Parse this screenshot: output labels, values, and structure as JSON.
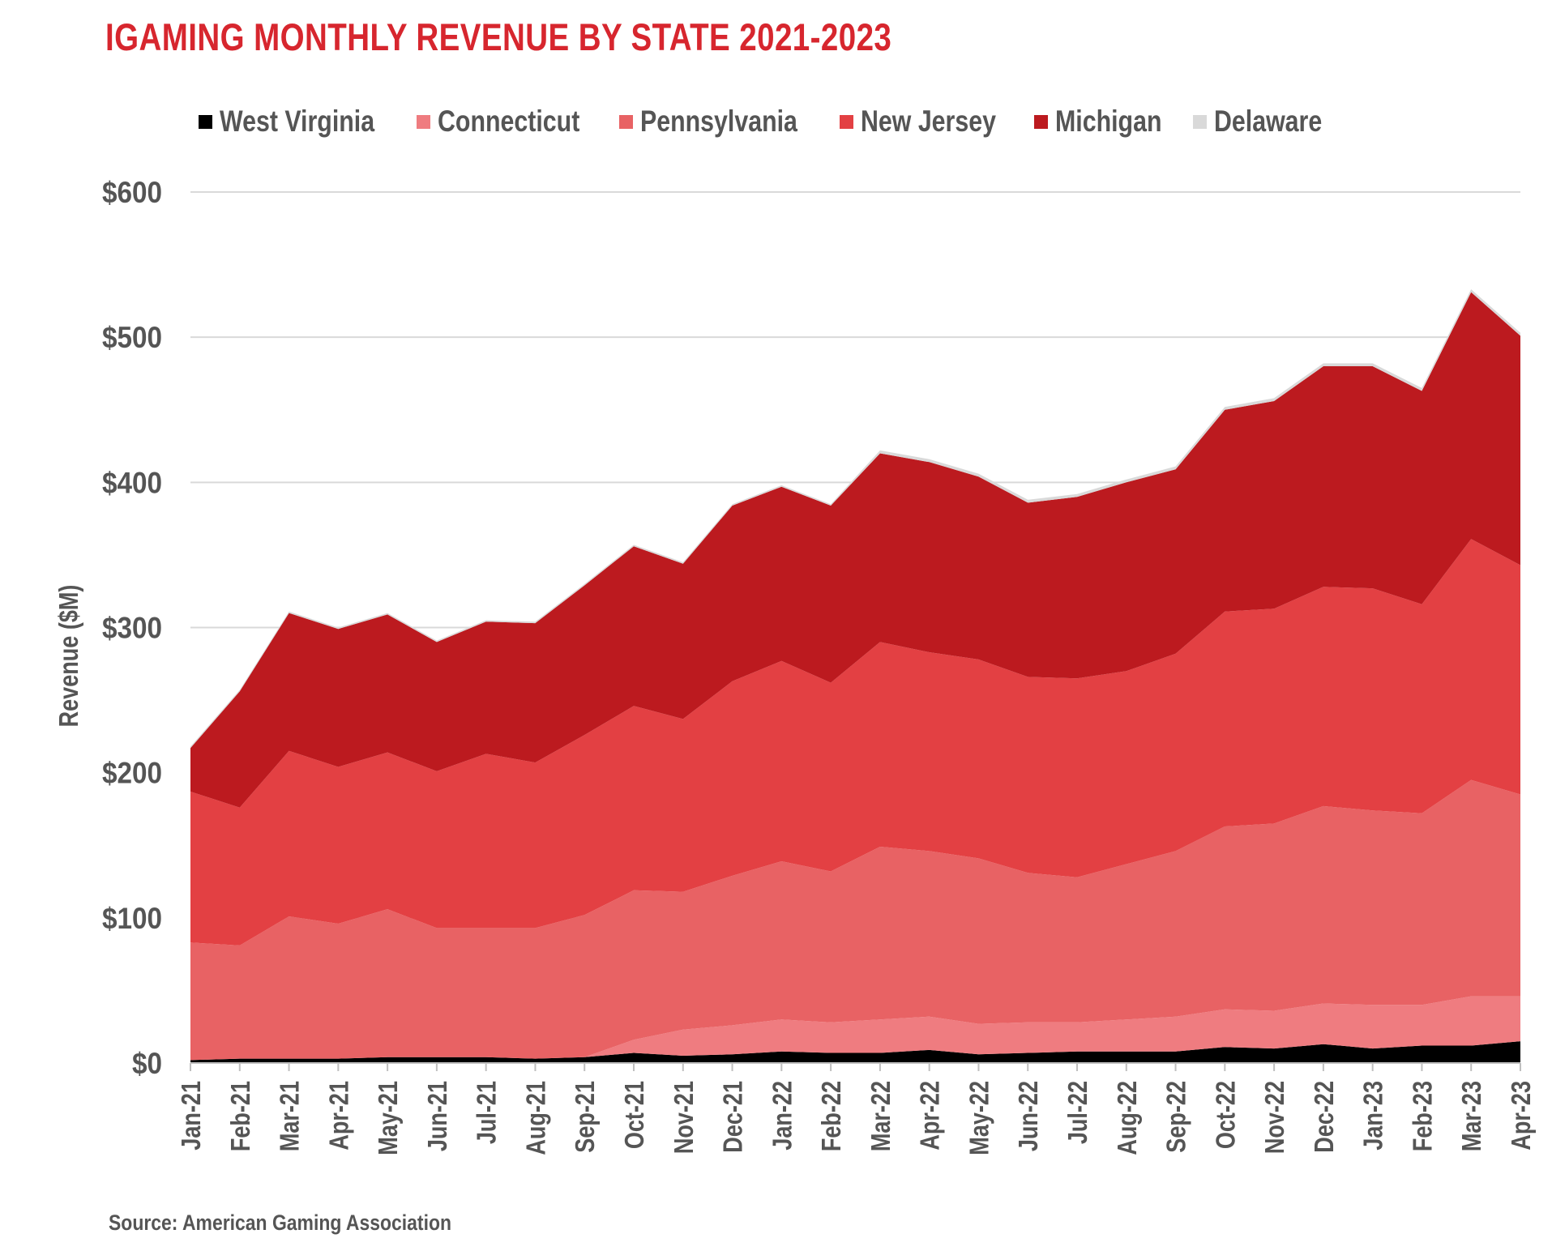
{
  "title": "IGAMING MONTHLY REVENUE BY STATE 2021-2023",
  "source": "Source: American Gaming Association",
  "legend": [
    {
      "name": "West Virginia",
      "color": "#000000"
    },
    {
      "name": "Connecticut",
      "color": "#ef7c80"
    },
    {
      "name": "Pennsylvania",
      "color": "#e86264"
    },
    {
      "name": "New Jersey",
      "color": "#e34043"
    },
    {
      "name": "Michigan",
      "color": "#bc1a1f"
    },
    {
      "name": "Delaware",
      "color": "#d9d9d9"
    }
  ],
  "chart_data": {
    "type": "area",
    "stacked": true,
    "title": "IGAMING MONTHLY REVENUE BY STATE 2021-2023",
    "xlabel": "",
    "ylabel": "Revenue ($M)",
    "ylim": [
      0,
      600
    ],
    "yticks": [
      0,
      100,
      200,
      300,
      400,
      500,
      600
    ],
    "ytick_labels": [
      "$0",
      "$100",
      "$200",
      "$300",
      "$400",
      "$500",
      "$600"
    ],
    "grid": true,
    "legend_position": "top",
    "categories": [
      "Jan-21",
      "Feb-21",
      "Mar-21",
      "Apr-21",
      "May-21",
      "Jun-21",
      "Jul-21",
      "Aug-21",
      "Sep-21",
      "Oct-21",
      "Nov-21",
      "Dec-21",
      "Jan-22",
      "Feb-22",
      "Mar-22",
      "Apr-22",
      "May-22",
      "Jun-22",
      "Jul-22",
      "Aug-22",
      "Sep-22",
      "Oct-22",
      "Nov-22",
      "Dec-22",
      "Jan-23",
      "Feb-23",
      "Mar-23",
      "Apr-23"
    ],
    "series": [
      {
        "name": "West Virginia",
        "color": "#000000",
        "values": [
          2,
          3,
          3,
          3,
          4,
          4,
          4,
          3,
          4,
          7,
          5,
          6,
          8,
          7,
          7,
          9,
          6,
          7,
          8,
          8,
          8,
          11,
          10,
          13,
          10,
          12,
          12,
          15
        ]
      },
      {
        "name": "Connecticut",
        "color": "#ef7c80",
        "values": [
          0,
          0,
          0,
          0,
          0,
          0,
          0,
          0,
          0,
          9,
          18,
          20,
          22,
          21,
          23,
          23,
          21,
          21,
          20,
          22,
          24,
          26,
          26,
          28,
          30,
          28,
          34,
          31
        ]
      },
      {
        "name": "Pennsylvania",
        "color": "#e86264",
        "values": [
          81,
          78,
          98,
          93,
          102,
          89,
          89,
          90,
          98,
          103,
          95,
          103,
          109,
          104,
          119,
          114,
          114,
          103,
          100,
          107,
          114,
          126,
          129,
          136,
          134,
          132,
          149,
          139
        ]
      },
      {
        "name": "New Jersey",
        "color": "#e34043",
        "values": [
          104,
          95,
          114,
          108,
          108,
          108,
          120,
          114,
          124,
          127,
          119,
          134,
          138,
          130,
          141,
          137,
          137,
          135,
          137,
          133,
          136,
          148,
          148,
          151,
          153,
          144,
          166,
          158
        ]
      },
      {
        "name": "Michigan",
        "color": "#bc1a1f",
        "values": [
          30,
          80,
          95,
          95,
          95,
          89,
          91,
          96,
          103,
          110,
          107,
          121,
          120,
          122,
          130,
          131,
          126,
          120,
          125,
          130,
          127,
          139,
          143,
          152,
          153,
          147,
          170,
          158
        ]
      },
      {
        "name": "Delaware",
        "color": "#d9d9d9",
        "values": [
          1,
          1,
          1,
          1,
          1,
          1,
          1,
          1,
          1,
          1,
          1,
          1,
          1,
          1,
          2,
          2,
          2,
          2,
          2,
          2,
          2,
          2,
          2,
          2,
          2,
          2,
          2,
          2
        ]
      }
    ]
  }
}
